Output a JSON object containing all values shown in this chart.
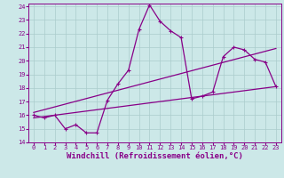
{
  "xlabel": "Windchill (Refroidissement éolien,°C)",
  "bg_color": "#cce8e8",
  "grid_color": "#aacccc",
  "line_color": "#880088",
  "xlim": [
    -0.5,
    23.5
  ],
  "ylim": [
    14,
    24.2
  ],
  "xticks": [
    0,
    1,
    2,
    3,
    4,
    5,
    6,
    7,
    8,
    9,
    10,
    11,
    12,
    13,
    14,
    15,
    16,
    17,
    18,
    19,
    20,
    21,
    22,
    23
  ],
  "yticks": [
    14,
    15,
    16,
    17,
    18,
    19,
    20,
    21,
    22,
    23,
    24
  ],
  "series1_x": [
    0,
    1,
    2,
    3,
    4,
    5,
    6,
    7,
    8,
    9,
    10,
    11,
    12,
    13,
    14,
    15,
    16,
    17,
    18,
    19,
    20,
    21,
    22,
    23
  ],
  "series1_y": [
    16.0,
    15.8,
    16.0,
    15.0,
    15.3,
    14.7,
    14.7,
    17.1,
    18.3,
    19.3,
    22.3,
    24.1,
    22.9,
    22.2,
    21.7,
    17.2,
    17.4,
    17.7,
    20.3,
    21.0,
    20.8,
    20.1,
    19.9,
    18.1
  ],
  "trend1_x": [
    0,
    23
  ],
  "trend1_y": [
    15.8,
    18.1
  ],
  "trend2_x": [
    0,
    23
  ],
  "trend2_y": [
    16.2,
    20.9
  ],
  "marker_size": 3,
  "line_width": 0.9,
  "font_size_ticks": 5,
  "font_size_xlabel": 6.5
}
